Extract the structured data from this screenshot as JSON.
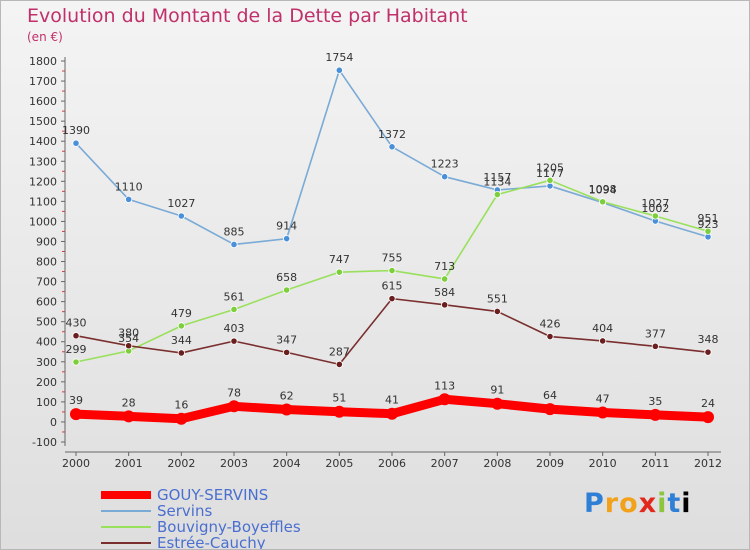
{
  "chart_data": {
    "type": "line",
    "title": "Evolution du Montant de la Dette par Habitant",
    "subtitle": "(en €)",
    "xlabel": "",
    "ylabel": "",
    "ylim": [
      -100,
      1800
    ],
    "yticks": [
      -100,
      0,
      100,
      200,
      300,
      400,
      500,
      600,
      700,
      800,
      900,
      1000,
      1100,
      1200,
      1300,
      1400,
      1500,
      1600,
      1700,
      1800
    ],
    "x": [
      "2000",
      "2001",
      "2002",
      "2003",
      "2004",
      "2005",
      "2006",
      "2007",
      "2008",
      "2009",
      "2010",
      "2011",
      "2012"
    ],
    "grid": false,
    "legend_position": "bottom-left",
    "series": [
      {
        "name": "GOUY-SERVINS",
        "color": "#ff0000",
        "values": [
          39,
          28,
          16,
          78,
          62,
          51,
          41,
          113,
          91,
          64,
          47,
          35,
          24
        ],
        "labels": [
          "39",
          "28",
          "16",
          "78",
          "62",
          "51",
          "41",
          "113",
          "91",
          "64",
          "47",
          "35",
          "24"
        ]
      },
      {
        "name": "Servins",
        "color": "#7aaad6",
        "values": [
          1390,
          1110,
          1027,
          885,
          914,
          1754,
          1372,
          1223,
          1157,
          1177,
          1094,
          1002,
          923
        ],
        "labels": [
          "1390",
          "1110",
          "1027",
          "885",
          "914",
          "1754",
          "1372",
          "1223",
          "1157",
          "1177",
          "1094",
          "1002",
          "923"
        ]
      },
      {
        "name": "Bouvigny-Boyeffles",
        "color": "#99e05c",
        "values": [
          299,
          354,
          479,
          561,
          658,
          747,
          755,
          713,
          1134,
          1205,
          1098,
          1027,
          951
        ],
        "labels": [
          "299",
          "354",
          "479",
          "561",
          "658",
          "747",
          "755",
          "713",
          "1134",
          "1205",
          "1098",
          "1027",
          "951"
        ]
      },
      {
        "name": "Estrée-Cauchy",
        "color": "#7a2e2e",
        "values": [
          430,
          380,
          344,
          403,
          347,
          287,
          615,
          584,
          551,
          426,
          404,
          377,
          348
        ],
        "labels": [
          "430",
          "380",
          "344",
          "403",
          "347",
          "287",
          "615",
          "584",
          "551",
          "426",
          "404",
          "377",
          "348"
        ]
      }
    ]
  },
  "logo": {
    "letters": [
      "P",
      "r",
      "o",
      "x",
      "i",
      "t",
      "i"
    ]
  }
}
